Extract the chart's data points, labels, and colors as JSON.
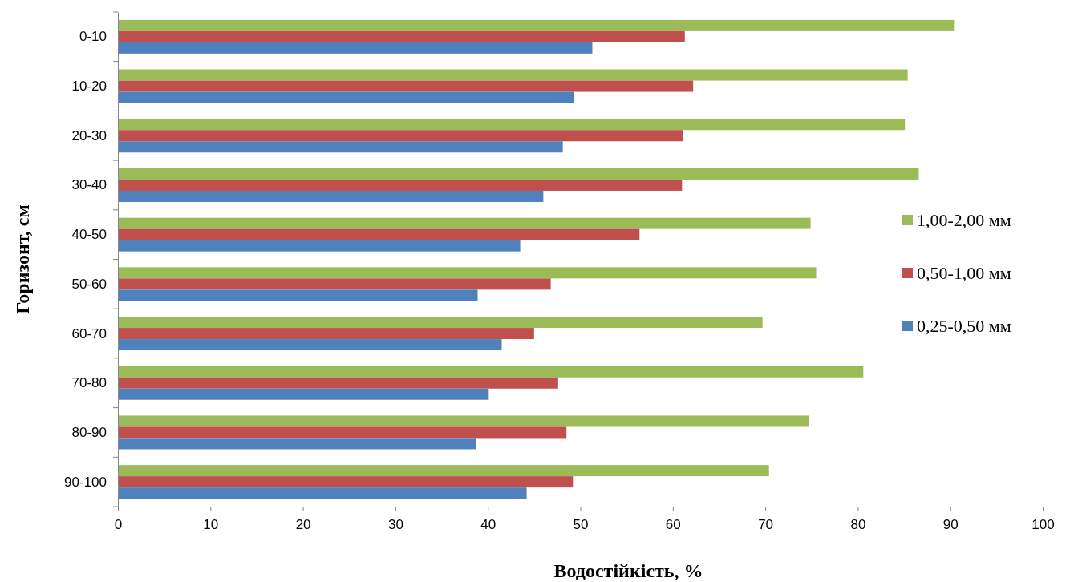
{
  "chart_data": {
    "type": "bar",
    "orientation": "horizontal",
    "xlabel": "Водостійкість, %",
    "ylabel": "Горизонт, см",
    "categories": [
      "0-10",
      "10-20",
      "20-30",
      "30-40",
      "40-50",
      "50-60",
      "60-70",
      "70-80",
      "80-90",
      "90-100"
    ],
    "series": [
      {
        "name": "1,00-2,00 мм",
        "color": "#9bbb59",
        "values": [
          90.4,
          85.4,
          85.1,
          86.6,
          74.9,
          75.5,
          69.7,
          80.6,
          74.7,
          70.4
        ]
      },
      {
        "name": "0,50-1,00 мм",
        "color": "#c0504d",
        "values": [
          61.3,
          62.2,
          61.1,
          61.0,
          56.4,
          46.8,
          45.0,
          47.6,
          48.5,
          49.2
        ]
      },
      {
        "name": "0,25-0,50 мм",
        "color": "#4f81bd",
        "values": [
          51.3,
          49.3,
          48.1,
          46.0,
          43.5,
          38.9,
          41.5,
          40.1,
          38.7,
          44.2
        ]
      }
    ],
    "xlim": [
      0,
      100
    ],
    "xticks": [
      0,
      10,
      20,
      30,
      40,
      50,
      60,
      70,
      80,
      90,
      100
    ],
    "grid": false,
    "legend": "right"
  }
}
